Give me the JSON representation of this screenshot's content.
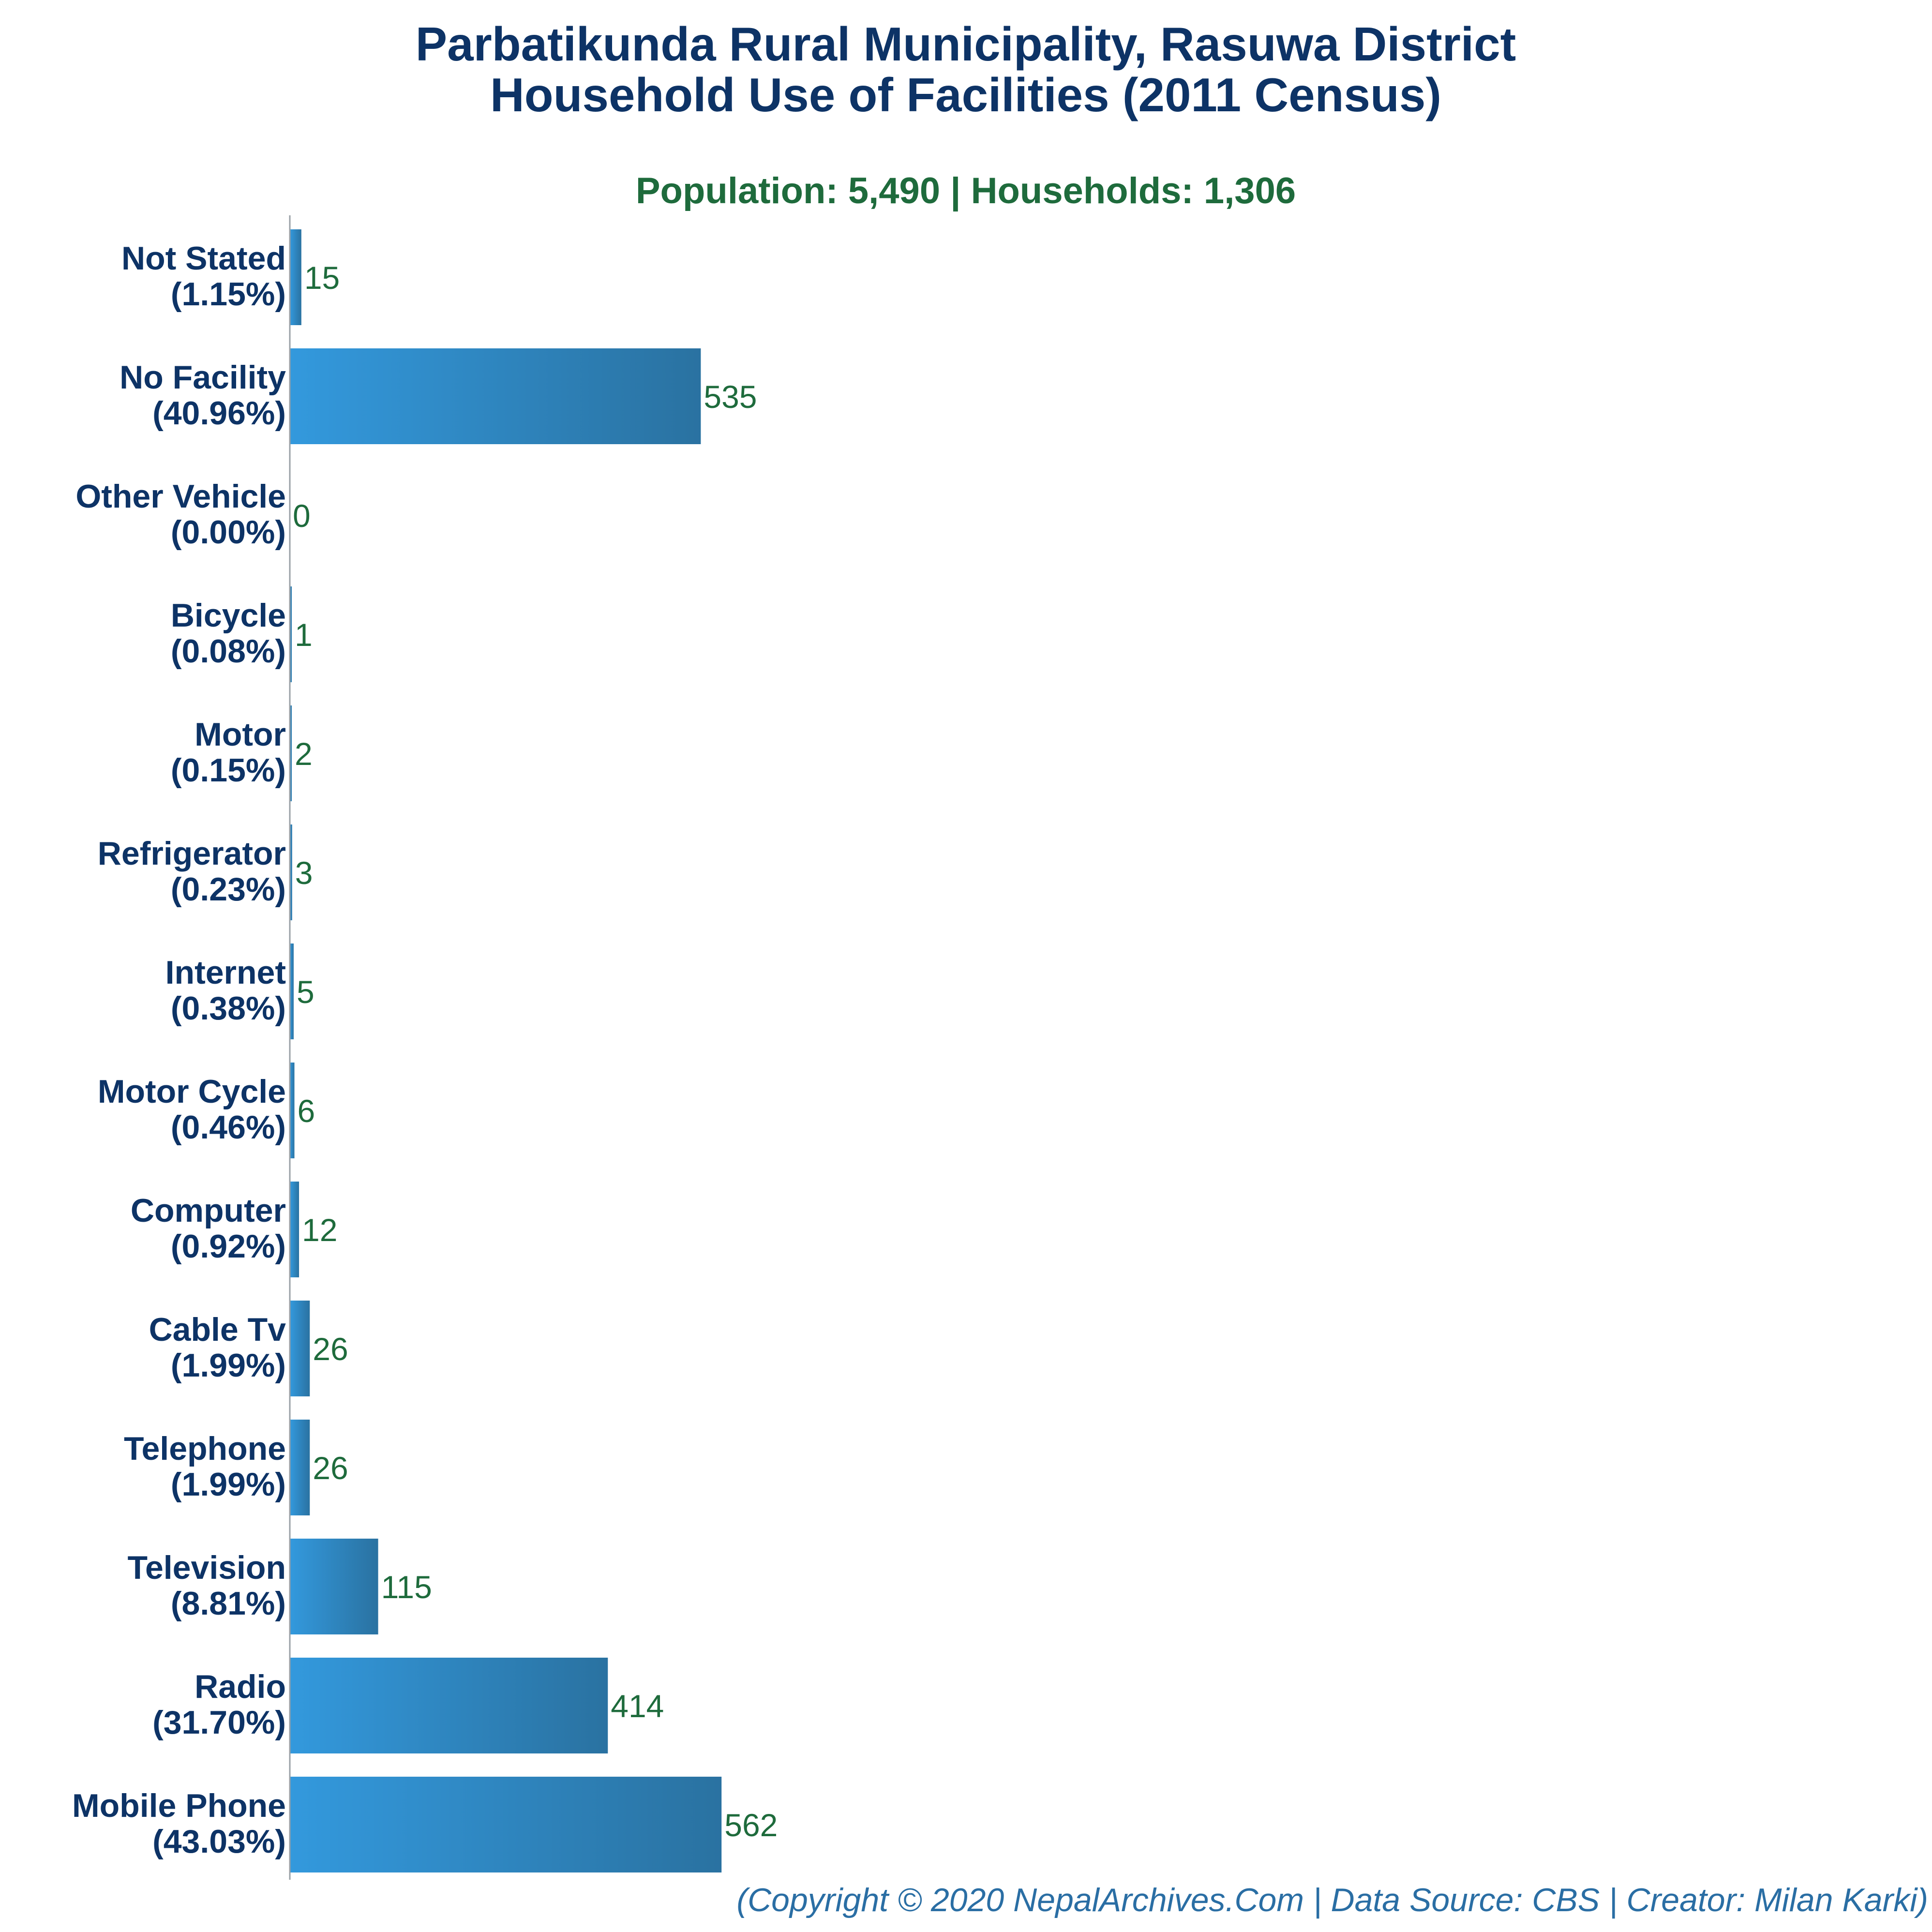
{
  "chart_data": {
    "type": "bar",
    "orientation": "horizontal",
    "title": [
      "Parbatikunda Rural Municipality, Rasuwa District",
      "Household Use of Facilities (2011 Census)"
    ],
    "subtitle": "Population: 5,490 | Households: 1,306",
    "footer": "(Copyright © 2020 NepalArchives.Com | Data Source: CBS | Creator: Milan Karki)",
    "categories": [
      "Not Stated",
      "No Facility",
      "Other Vehicle",
      "Bicycle",
      "Motor",
      "Refrigerator",
      "Internet",
      "Motor Cycle",
      "Computer",
      "Cable Tv",
      "Telephone",
      "Television",
      "Radio",
      "Mobile Phone"
    ],
    "percent_labels": [
      "(1.15%)",
      "(40.96%)",
      "(0.00%)",
      "(0.08%)",
      "(0.15%)",
      "(0.23%)",
      "(0.38%)",
      "(0.46%)",
      "(0.92%)",
      "(1.99%)",
      "(1.99%)",
      "(8.81%)",
      "(31.70%)",
      "(43.03%)"
    ],
    "values": [
      15,
      535,
      0,
      1,
      2,
      3,
      5,
      6,
      12,
      26,
      26,
      115,
      414,
      562
    ],
    "xlim": [
      0,
      2100
    ],
    "grid": false,
    "legend": "none",
    "colors": {
      "bar_start": "#3399dd",
      "bar_end": "#2a72a1",
      "title": "#0d3366",
      "subtitle": "#1e6b3c",
      "value_label": "#1e6b3c",
      "footer": "#2a6ea4",
      "axis": "#9aa0a6"
    }
  }
}
